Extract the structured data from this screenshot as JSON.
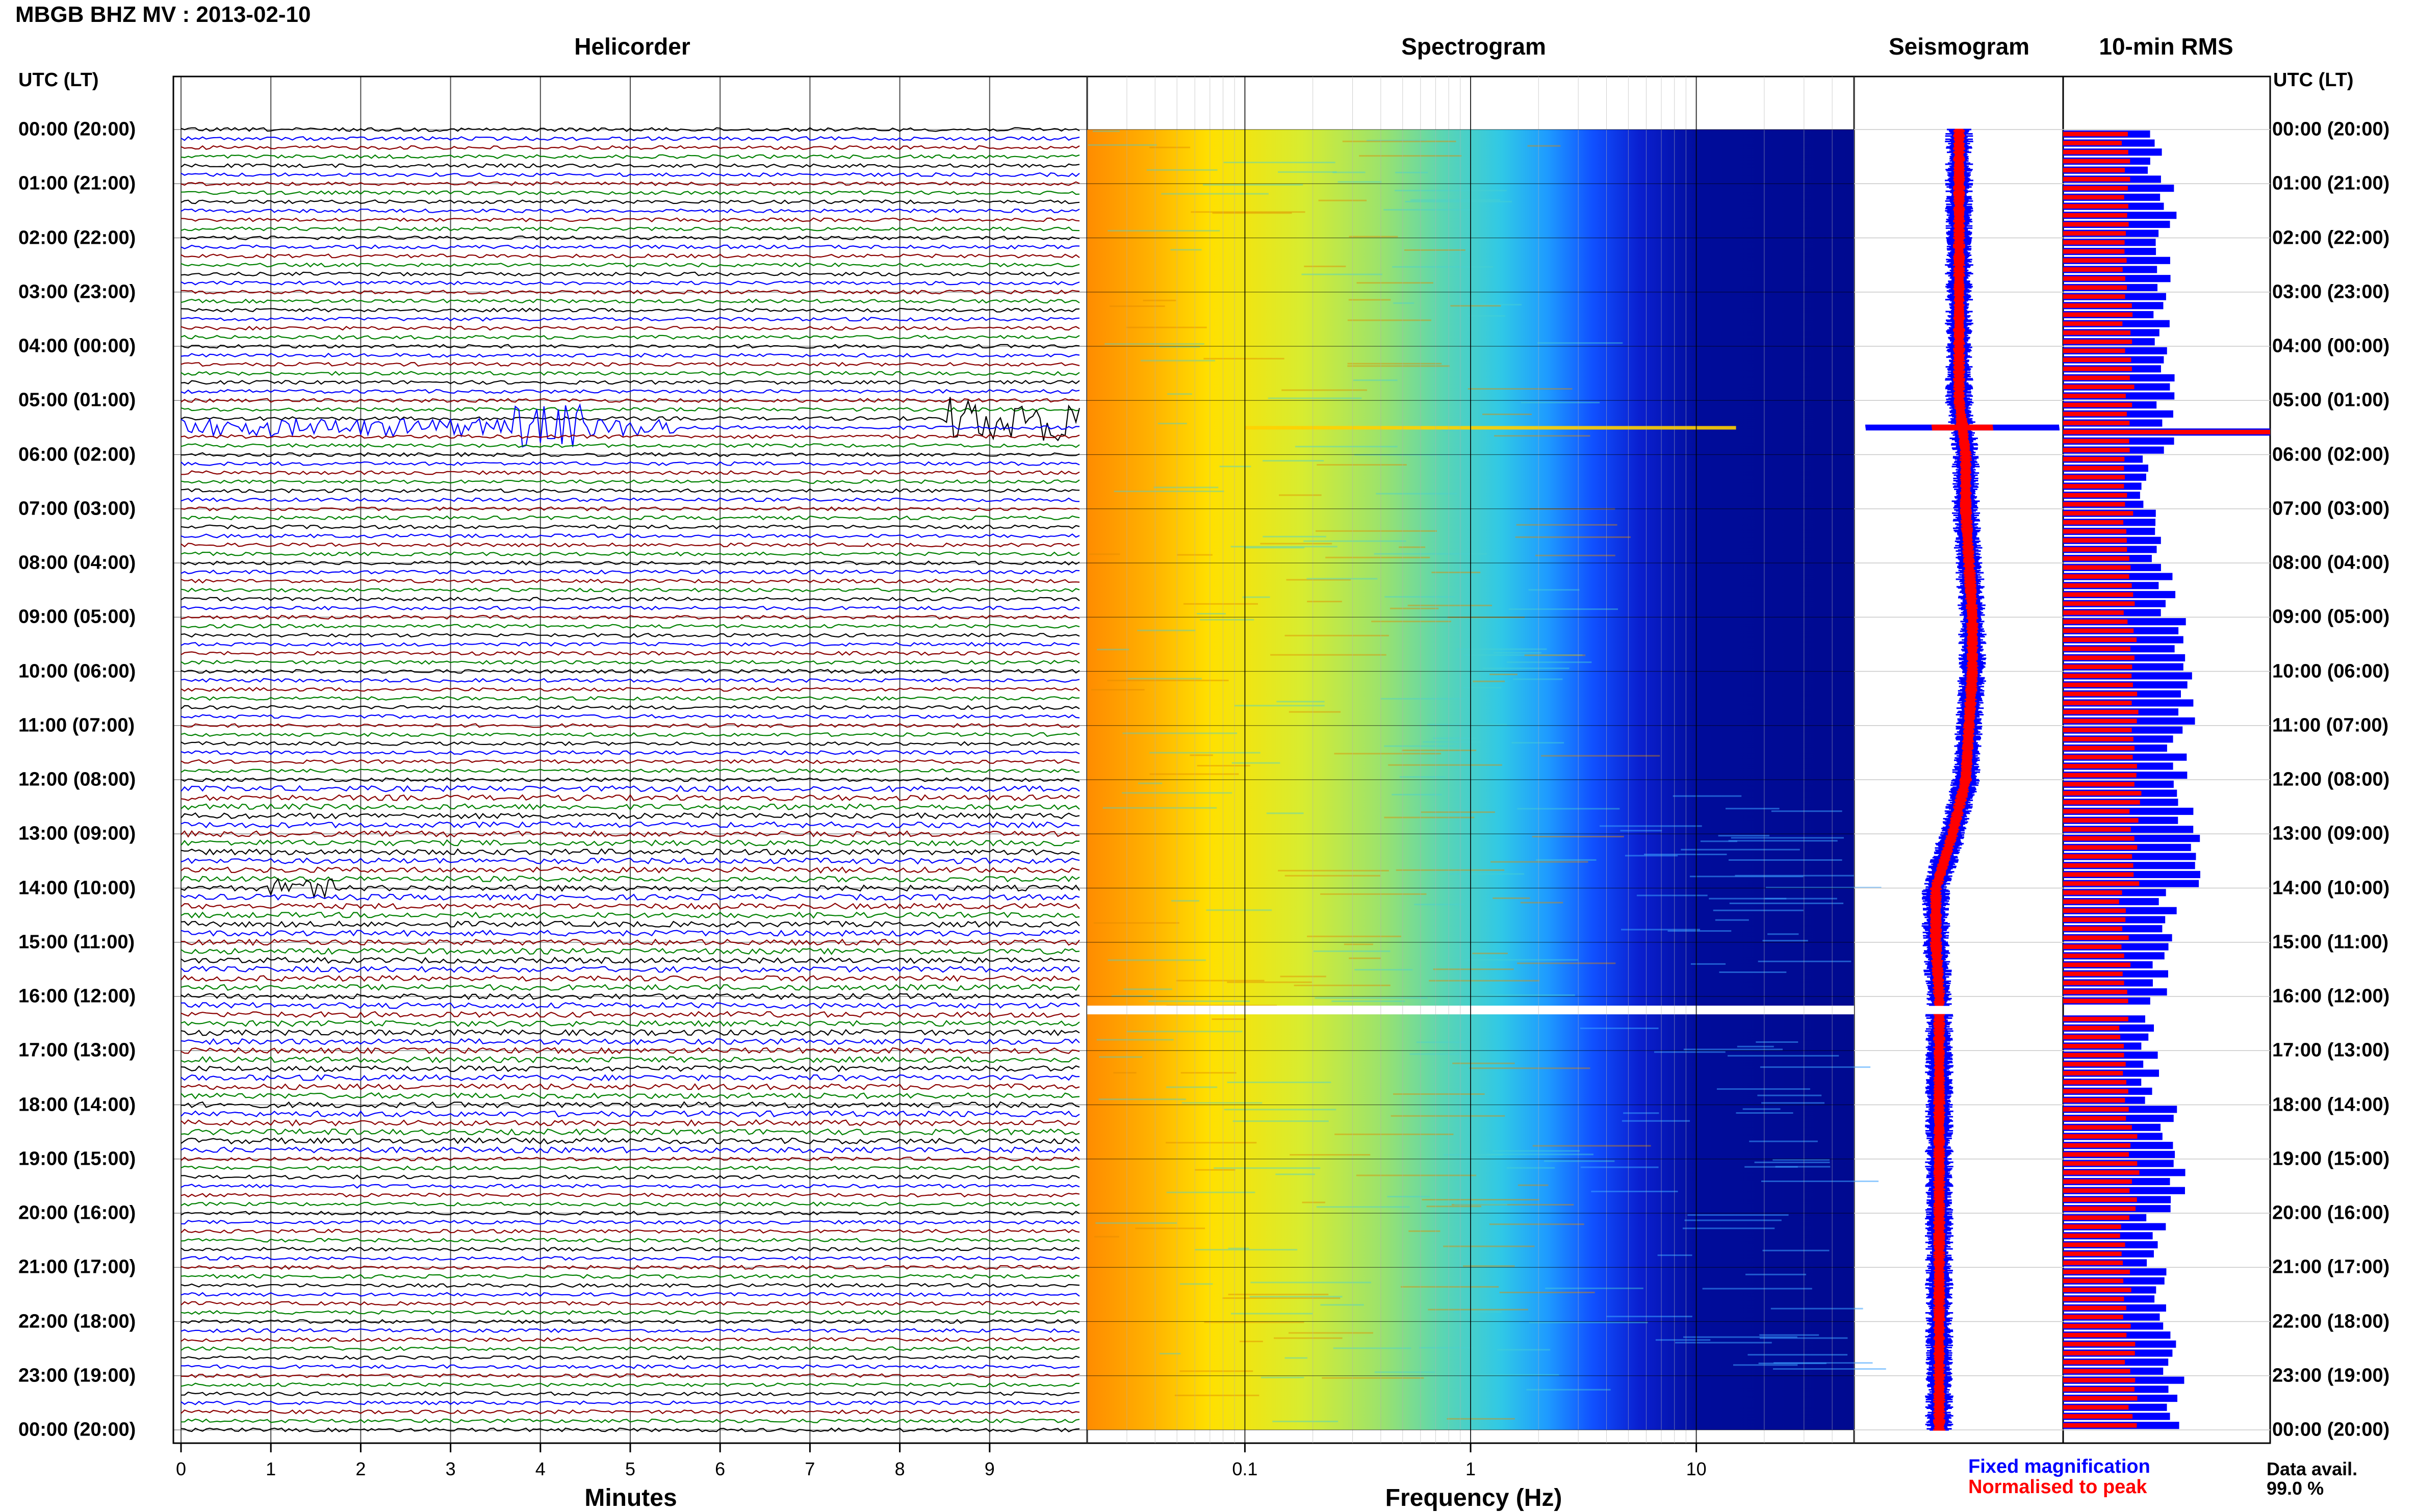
{
  "title": "MBGB BHZ MV : 2013-02-10",
  "headers": {
    "helicorder": "Helicorder",
    "spectrogram": "Spectrogram",
    "seismogram": "Seismogram",
    "rms": "10-min RMS",
    "utc_left": "UTC (LT)",
    "utc_right": "UTC (LT)"
  },
  "time_labels": [
    "00:00 (20:00)",
    "01:00 (21:00)",
    "02:00 (22:00)",
    "03:00 (23:00)",
    "04:00 (00:00)",
    "05:00 (01:00)",
    "06:00 (02:00)",
    "07:00 (03:00)",
    "08:00 (04:00)",
    "09:00 (05:00)",
    "10:00 (06:00)",
    "11:00 (07:00)",
    "12:00 (08:00)",
    "13:00 (09:00)",
    "14:00 (10:00)",
    "15:00 (11:00)",
    "16:00 (12:00)",
    "17:00 (13:00)",
    "18:00 (14:00)",
    "19:00 (15:00)",
    "20:00 (16:00)",
    "21:00 (17:00)",
    "22:00 (18:00)",
    "23:00 (19:00)",
    "00:00 (20:00)"
  ],
  "axes": {
    "helicorder_xlabel": "Minutes",
    "helicorder_ticks": [
      "0",
      "1",
      "2",
      "3",
      "4",
      "5",
      "6",
      "7",
      "8",
      "9"
    ],
    "spectrogram_xlabel": "Frequency (Hz)",
    "spectrogram_ticks": [
      "0.1",
      "1",
      "10"
    ]
  },
  "legend": {
    "fixed": "Fixed magnification",
    "normalised": "Normalised to peak"
  },
  "data_availability": {
    "label": "Data avail.",
    "value": "99.0 %"
  },
  "colors": {
    "trace_cycle": [
      "#000000",
      "#0000ff",
      "#8b0000",
      "#008000"
    ],
    "fixed": "#0000ff",
    "normalised": "#ff0000"
  },
  "chart_data": [
    {
      "type": "line",
      "name": "helicorder",
      "x_unit": "minutes",
      "xlim": [
        0,
        10
      ],
      "rows_per_hour": 6,
      "hours": 24,
      "events": [
        {
          "hour": 5.5,
          "minute_start": 0.0,
          "minute_end": 5.5,
          "amplitude": "moderate"
        },
        {
          "hour": 5.5,
          "minute_start": 3.7,
          "minute_end": 4.6,
          "amplitude": "high"
        },
        {
          "hour": 5.33,
          "minute_start": 8.5,
          "minute_end": 10.0,
          "amplitude": "high"
        },
        {
          "hour": 14.0,
          "minute_start": 1.0,
          "minute_end": 1.7,
          "amplitude": "moderate"
        }
      ],
      "data_gap_hours": [
        16.17,
        16.33
      ]
    },
    {
      "type": "heatmap",
      "name": "spectrogram",
      "x_scale": "log",
      "xlim": [
        0.02,
        50
      ],
      "x_unit": "Hz",
      "hours": 24,
      "gap_hours": [
        16.17,
        16.33
      ],
      "event_hour": 5.5
    },
    {
      "type": "line",
      "name": "seismogram",
      "hours": 24,
      "centre_offset": [
        0,
        0,
        0,
        0,
        0,
        0,
        0.1,
        0.1,
        0.15,
        0.2,
        0.2,
        0.15,
        0.1,
        -0.1,
        -0.35,
        -0.35,
        -0.3,
        -0.3,
        -0.3,
        -0.3,
        -0.3,
        -0.3,
        -0.3,
        -0.3,
        -0.3
      ],
      "event_hour": 5.5
    },
    {
      "type": "bar",
      "name": "10-min RMS",
      "bins_per_hour": 6,
      "fixed_relative": [
        0.45,
        0.5,
        0.48,
        0.47,
        0.5,
        0.5,
        0.42,
        0.45,
        0.5,
        0.55,
        0.6,
        0.55,
        0.58,
        0.62,
        0.5,
        0.48,
        0.4,
        0.42,
        0.5,
        0.55,
        0.45,
        0.48,
        0.5,
        0.55
      ],
      "normalised_relative": [
        0.3,
        0.32,
        0.3,
        0.31,
        0.32,
        0.33,
        0.3,
        0.31,
        0.32,
        0.34,
        0.36,
        0.33,
        0.35,
        0.36,
        0.3,
        0.31,
        0.29,
        0.3,
        0.33,
        0.34,
        0.3,
        0.31,
        0.32,
        0.33
      ],
      "peak_hour": 5.5
    }
  ]
}
